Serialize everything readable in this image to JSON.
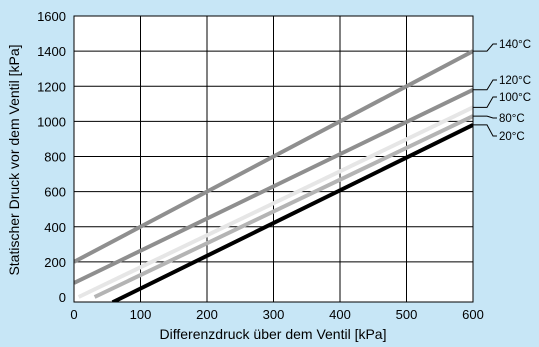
{
  "chart_data": {
    "type": "line",
    "xlabel": "Differenzdruck über dem Ventil [kPa]",
    "ylabel": "Statischer Druck vor dem Ventil [kPa]",
    "xlim": [
      0,
      600
    ],
    "ylim": [
      -50,
      1600
    ],
    "x_ticks": [
      "0",
      "100",
      "200",
      "300",
      "400",
      "500",
      "600"
    ],
    "y_ticks": [
      "0",
      "200",
      "400",
      "600",
      "800",
      "1000",
      "1200",
      "1400",
      "1600"
    ],
    "grid": true,
    "colors": {
      "background": "#c7e6f6",
      "plot_area": "#ffffff",
      "grid": "#000000"
    },
    "series": [
      {
        "name": "140°C",
        "color": "#8f8f8f",
        "x": [
          0,
          600
        ],
        "y": [
          200,
          1400
        ]
      },
      {
        "name": "120°C",
        "color": "#8f8f8f",
        "x": [
          0,
          600
        ],
        "y": [
          80,
          1180
        ]
      },
      {
        "name": "100°C",
        "color": "#e6e6e6",
        "x": [
          7,
          600
        ],
        "y": [
          0,
          1080
        ]
      },
      {
        "name": "80°C",
        "color": "#b4b4b4",
        "x": [
          31,
          600
        ],
        "y": [
          0,
          1030
        ]
      },
      {
        "name": "20°C",
        "color": "#000000",
        "x": [
          58,
          600
        ],
        "y": [
          -30,
          980
        ]
      }
    ]
  }
}
